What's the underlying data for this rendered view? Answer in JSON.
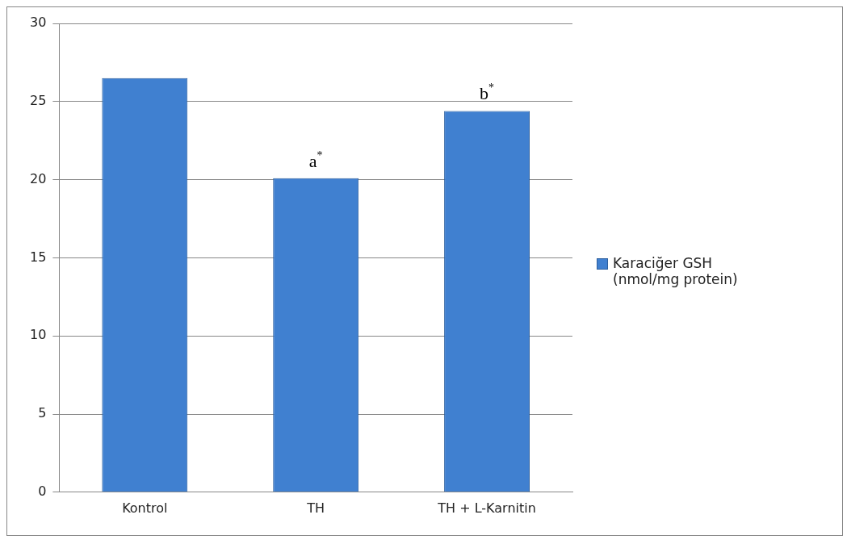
{
  "chart_data": {
    "type": "bar",
    "categories": [
      "Kontrol",
      "TH",
      "TH + L-Karnitin"
    ],
    "series": [
      {
        "name": "Karaciğer GSH (nmol/mg protein)",
        "color": "#4080d0",
        "values": [
          26.5,
          20.1,
          24.4
        ]
      }
    ],
    "ylim": [
      0,
      30
    ],
    "yticks": [
      0,
      5,
      10,
      15,
      20,
      25,
      30
    ],
    "grid": "y",
    "legend": "right",
    "annotations": [
      {
        "text": "a$^{*}$",
        "x": "TH",
        "y": 20.1
      },
      {
        "text": "b$^{*}$",
        "x": "TH + L-Karnitin",
        "y": 24.4
      }
    ]
  }
}
